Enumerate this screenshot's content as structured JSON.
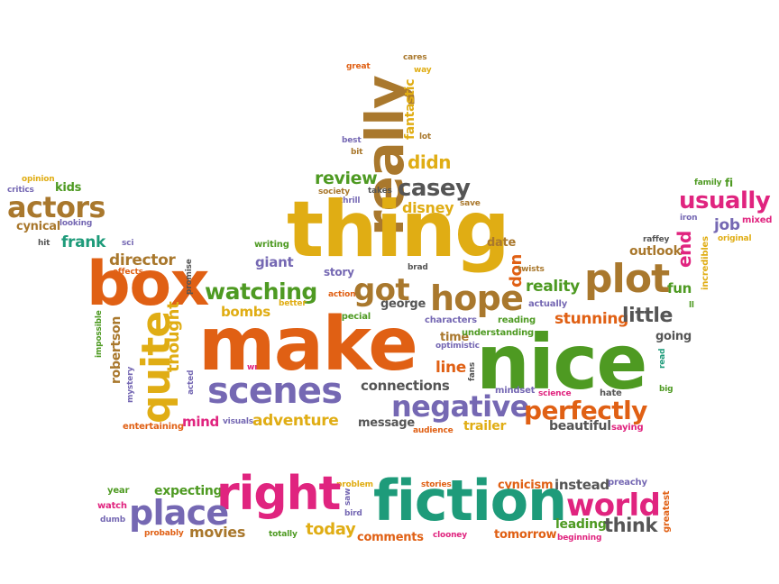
{
  "palette": {
    "brown": "#a9782d",
    "mustard": "#e0ad14",
    "orange": "#e06014",
    "green": "#4e9a22",
    "teal": "#1e9b7a",
    "purple": "#7568b3",
    "gray": "#555555",
    "pink": "#e0247f"
  },
  "words": [
    {
      "text": "really",
      "color": "brown"
    },
    {
      "text": "great",
      "color": "orange"
    },
    {
      "text": "cares",
      "color": "brown"
    },
    {
      "text": "way",
      "color": "mustard"
    },
    {
      "text": "fantastic",
      "color": "mustard"
    },
    {
      "text": "lot",
      "color": "brown"
    },
    {
      "text": "best",
      "color": "purple"
    },
    {
      "text": "bit",
      "color": "brown"
    },
    {
      "text": "didn",
      "color": "mustard"
    },
    {
      "text": "review",
      "color": "green"
    },
    {
      "text": "society",
      "color": "brown"
    },
    {
      "text": "thrill",
      "color": "purple"
    },
    {
      "text": "takes",
      "color": "gray"
    },
    {
      "text": "casey",
      "color": "gray"
    },
    {
      "text": "disney",
      "color": "mustard"
    },
    {
      "text": "save",
      "color": "brown"
    },
    {
      "text": "thing",
      "color": "mustard"
    },
    {
      "text": "opinion",
      "color": "mustard"
    },
    {
      "text": "critics",
      "color": "purple"
    },
    {
      "text": "kids",
      "color": "green"
    },
    {
      "text": "actors",
      "color": "brown"
    },
    {
      "text": "cynical",
      "color": "brown"
    },
    {
      "text": "looking",
      "color": "purple"
    },
    {
      "text": "hit",
      "color": "gray"
    },
    {
      "text": "frank",
      "color": "teal"
    },
    {
      "text": "sci",
      "color": "purple"
    },
    {
      "text": "director",
      "color": "brown"
    },
    {
      "text": "effects",
      "color": "orange"
    },
    {
      "text": "box",
      "color": "orange"
    },
    {
      "text": "promise",
      "color": "gray"
    },
    {
      "text": "writing",
      "color": "green"
    },
    {
      "text": "giant",
      "color": "purple"
    },
    {
      "text": "story",
      "color": "purple"
    },
    {
      "text": "brad",
      "color": "gray"
    },
    {
      "text": "watching",
      "color": "green"
    },
    {
      "text": "action",
      "color": "orange"
    },
    {
      "text": "better",
      "color": "mustard"
    },
    {
      "text": "bombs",
      "color": "mustard"
    },
    {
      "text": "got",
      "color": "brown"
    },
    {
      "text": "george",
      "color": "gray"
    },
    {
      "text": "special",
      "color": "green"
    },
    {
      "text": "hope",
      "color": "brown"
    },
    {
      "text": "don",
      "color": "orange"
    },
    {
      "text": "twists",
      "color": "brown"
    },
    {
      "text": "date",
      "color": "brown"
    },
    {
      "text": "reality",
      "color": "green"
    },
    {
      "text": "actually",
      "color": "purple"
    },
    {
      "text": "plot",
      "color": "brown"
    },
    {
      "text": "family",
      "color": "green"
    },
    {
      "text": "fi",
      "color": "green"
    },
    {
      "text": "usually",
      "color": "pink"
    },
    {
      "text": "iron",
      "color": "purple"
    },
    {
      "text": "job",
      "color": "purple"
    },
    {
      "text": "mixed",
      "color": "pink"
    },
    {
      "text": "end",
      "color": "pink"
    },
    {
      "text": "raffey",
      "color": "gray"
    },
    {
      "text": "original",
      "color": "mustard"
    },
    {
      "text": "outlook",
      "color": "brown"
    },
    {
      "text": "incredibles",
      "color": "mustard"
    },
    {
      "text": "fun",
      "color": "green"
    },
    {
      "text": "ll",
      "color": "green"
    },
    {
      "text": "impossible",
      "color": "green"
    },
    {
      "text": "quite",
      "color": "mustard"
    },
    {
      "text": "robertson",
      "color": "brown"
    },
    {
      "text": "mystery",
      "color": "purple"
    },
    {
      "text": "thought",
      "color": "mustard"
    },
    {
      "text": "acted",
      "color": "purple"
    },
    {
      "text": "write",
      "color": "pink"
    },
    {
      "text": "make",
      "color": "orange"
    },
    {
      "text": "scenes",
      "color": "purple"
    },
    {
      "text": "connections",
      "color": "gray"
    },
    {
      "text": "characters",
      "color": "purple"
    },
    {
      "text": "time",
      "color": "brown"
    },
    {
      "text": "understanding",
      "color": "green"
    },
    {
      "text": "optimistic",
      "color": "purple"
    },
    {
      "text": "reading",
      "color": "green"
    },
    {
      "text": "stunning",
      "color": "orange"
    },
    {
      "text": "little",
      "color": "gray"
    },
    {
      "text": "going",
      "color": "gray"
    },
    {
      "text": "nice",
      "color": "green"
    },
    {
      "text": "read",
      "color": "teal"
    },
    {
      "text": "line",
      "color": "orange"
    },
    {
      "text": "fans",
      "color": "gray"
    },
    {
      "text": "mindset",
      "color": "purple"
    },
    {
      "text": "science",
      "color": "pink"
    },
    {
      "text": "hate",
      "color": "gray"
    },
    {
      "text": "big",
      "color": "green"
    },
    {
      "text": "negative",
      "color": "purple"
    },
    {
      "text": "perfectly",
      "color": "orange"
    },
    {
      "text": "entertaining",
      "color": "orange"
    },
    {
      "text": "mind",
      "color": "pink"
    },
    {
      "text": "visuals",
      "color": "purple"
    },
    {
      "text": "adventure",
      "color": "mustard"
    },
    {
      "text": "message",
      "color": "gray"
    },
    {
      "text": "audience",
      "color": "orange"
    },
    {
      "text": "trailer",
      "color": "mustard"
    },
    {
      "text": "beautiful",
      "color": "gray"
    },
    {
      "text": "saying",
      "color": "pink"
    },
    {
      "text": "problem",
      "color": "mustard"
    },
    {
      "text": "stories",
      "color": "orange"
    },
    {
      "text": "cynicism",
      "color": "orange"
    },
    {
      "text": "instead",
      "color": "gray"
    },
    {
      "text": "preachy",
      "color": "purple"
    },
    {
      "text": "year",
      "color": "green"
    },
    {
      "text": "expecting",
      "color": "green"
    },
    {
      "text": "right",
      "color": "pink"
    },
    {
      "text": "saw",
      "color": "purple"
    },
    {
      "text": "bird",
      "color": "purple"
    },
    {
      "text": "fiction",
      "color": "teal"
    },
    {
      "text": "world",
      "color": "pink"
    },
    {
      "text": "greatest",
      "color": "orange"
    },
    {
      "text": "watch",
      "color": "pink"
    },
    {
      "text": "dumb",
      "color": "purple"
    },
    {
      "text": "place",
      "color": "purple"
    },
    {
      "text": "leading",
      "color": "green"
    },
    {
      "text": "think",
      "color": "gray"
    },
    {
      "text": "probably",
      "color": "orange"
    },
    {
      "text": "movies",
      "color": "brown"
    },
    {
      "text": "totally",
      "color": "green"
    },
    {
      "text": "today",
      "color": "mustard"
    },
    {
      "text": "comments",
      "color": "orange"
    },
    {
      "text": "clooney",
      "color": "pink"
    },
    {
      "text": "tomorrow",
      "color": "orange"
    },
    {
      "text": "beginning",
      "color": "pink"
    }
  ]
}
